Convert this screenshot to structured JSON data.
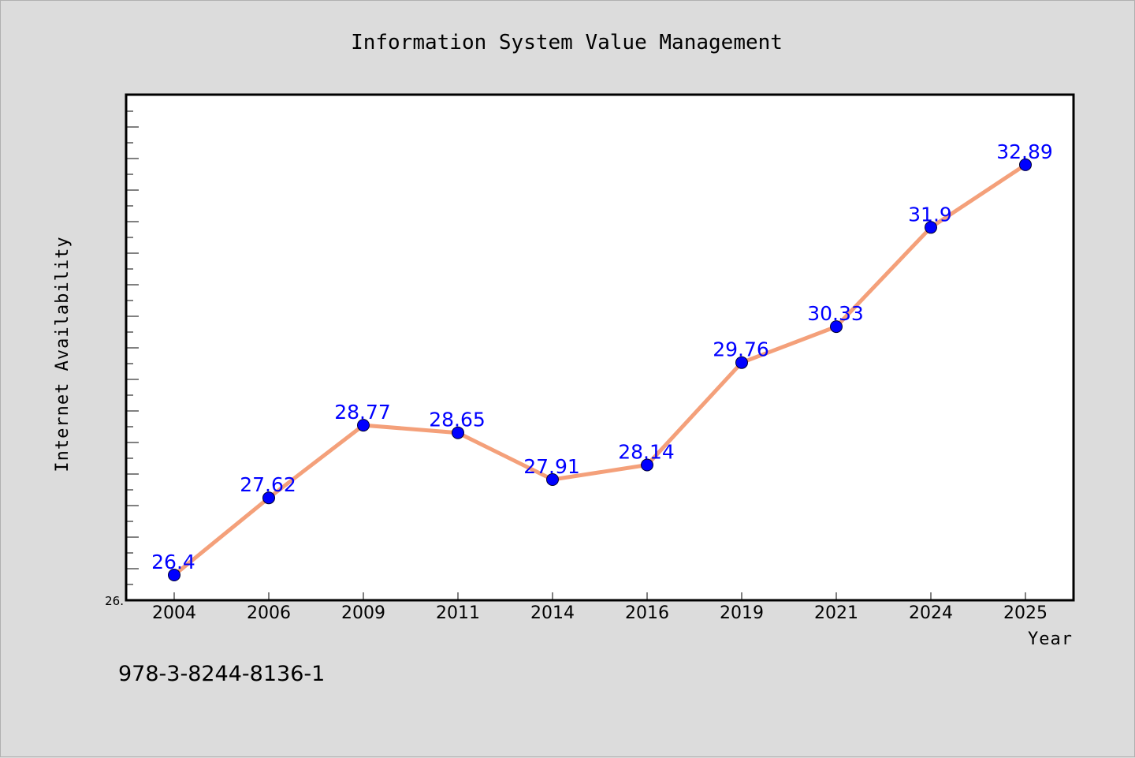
{
  "chart_data": {
    "type": "line",
    "title": "Information System Value Management",
    "xlabel": "Year",
    "ylabel": "Internet Availability",
    "categories": [
      "2004",
      "2006",
      "2009",
      "2011",
      "2014",
      "2016",
      "2019",
      "2021",
      "2024",
      "2025"
    ],
    "series": [
      {
        "values": [
          26.4,
          27.62,
          28.77,
          28.65,
          27.91,
          28.14,
          29.76,
          30.33,
          31.9,
          32.89
        ],
        "data_labels": [
          "26.4",
          "27.62",
          "28.77",
          "28.65",
          "27.91",
          "28.14",
          "29.76",
          "30.33",
          "31.9",
          "32.89"
        ]
      }
    ],
    "ylim": [
      26.0,
      34.0
    ],
    "y_tick_label": "26.",
    "grid": false,
    "line_color": "#f4a07a",
    "marker_color": "#0000ff",
    "label_color": "#0000ff",
    "plot_background": "#ffffff",
    "figure_background": "#dcdcdc"
  },
  "annotation": {
    "isbn": "978-3-8244-8136-1"
  }
}
